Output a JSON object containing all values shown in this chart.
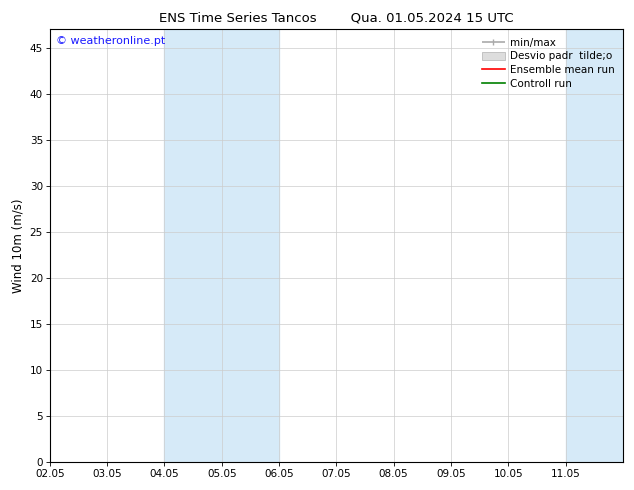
{
  "title_left": "ENS Time Series Tancos",
  "title_right": "Qua. 01.05.2024 15 UTC",
  "ylabel": "Wind 10m (m/s)",
  "ylim": [
    0,
    47
  ],
  "yticks": [
    0,
    5,
    10,
    15,
    20,
    25,
    30,
    35,
    40,
    45
  ],
  "xtick_labels": [
    "02.05",
    "03.05",
    "04.05",
    "05.05",
    "06.05",
    "07.05",
    "08.05",
    "09.05",
    "10.05",
    "11.05"
  ],
  "num_xticks": 10,
  "shaded_regions": [
    {
      "xstart": 2,
      "xend": 4,
      "color": "#d6eaf8"
    },
    {
      "xstart": 9,
      "xend": 10,
      "color": "#d6eaf8"
    }
  ],
  "legend_entries": [
    {
      "label": "min/max",
      "color": "#aaaaaa",
      "lw": 1.2
    },
    {
      "label": "Desvio padr  tilde;o",
      "facecolor": "#dddddd",
      "edgecolor": "#bbbbbb"
    },
    {
      "label": "Ensemble mean run",
      "color": "red",
      "lw": 1.2
    },
    {
      "label": "Controll run",
      "color": "green",
      "lw": 1.2
    }
  ],
  "watermark": "© weatheronline.pt",
  "watermark_color": "#1a1aff",
  "background_color": "#ffffff",
  "grid_color": "#cccccc",
  "grid_lw": 0.5,
  "title_fontsize": 9.5,
  "tick_fontsize": 7.5,
  "ylabel_fontsize": 8.5,
  "legend_fontsize": 7.5,
  "watermark_fontsize": 8
}
